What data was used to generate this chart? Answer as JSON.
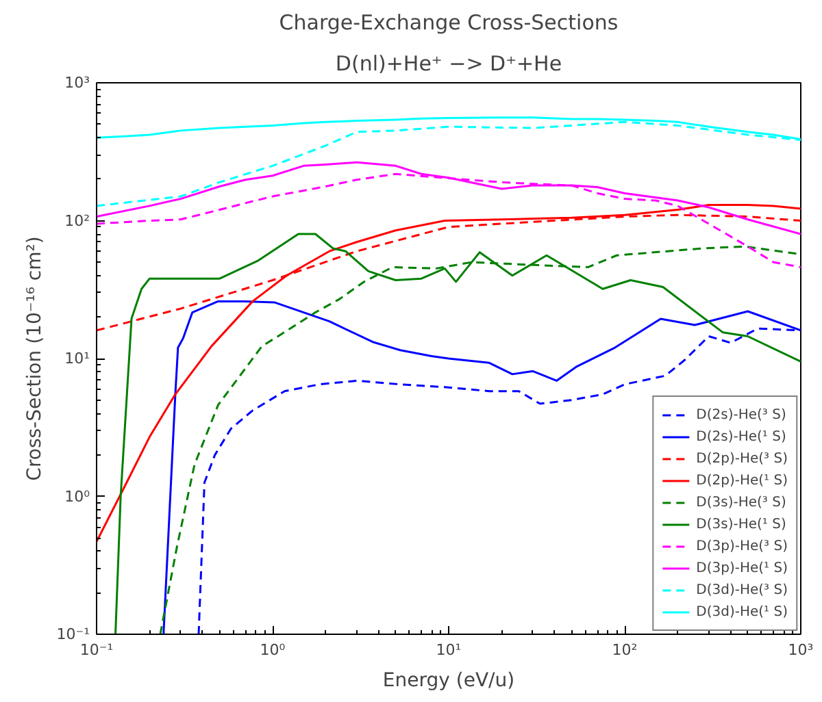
{
  "chart_data": {
    "type": "line",
    "title": "Charge-Exchange Cross-Sections",
    "subtitle": "D(nl)+He⁺ −> D⁺+He",
    "xlabel": "Energy (eV/u)",
    "ylabel": "Cross-Section (10⁻¹⁶ cm²)",
    "log": "xy",
    "xlim": [
      0.1,
      1000
    ],
    "ylim": [
      0.1,
      1000
    ],
    "xticks": [
      {
        "value": 0.1,
        "label": "10⁻¹"
      },
      {
        "value": 1,
        "label": "10⁰"
      },
      {
        "value": 10,
        "label": "10¹"
      },
      {
        "value": 100,
        "label": "10²"
      },
      {
        "value": 1000,
        "label": "10³"
      }
    ],
    "yticks": [
      {
        "value": 0.1,
        "label": "10⁻¹"
      },
      {
        "value": 1,
        "label": "10⁰"
      },
      {
        "value": 10,
        "label": "10¹"
      },
      {
        "value": 100,
        "label": "10²"
      },
      {
        "value": 1000,
        "label": "10³"
      }
    ],
    "grid": false,
    "legend": "bottom right",
    "series": [
      {
        "name": "D(2s)-He(³ S)",
        "color": "#0000ff",
        "line_style": "dashed",
        "x": [
          0.38,
          0.41,
          0.47,
          0.58,
          0.77,
          1.17,
          1.85,
          3,
          5.3,
          9.5,
          17,
          25,
          33,
          50,
          75,
          100,
          170,
          220,
          300,
          400,
          570,
          1000
        ],
        "values": [
          0.1,
          1.26,
          2,
          3.1,
          4.2,
          5.8,
          6.5,
          6.9,
          6.5,
          6.2,
          5.8,
          5.8,
          4.7,
          5.0,
          5.5,
          6.5,
          7.5,
          9.8,
          14.5,
          13,
          16.5,
          16
        ]
      },
      {
        "name": "D(2s)-He(¹ S)",
        "color": "#0000ff",
        "line_style": "solid",
        "x": [
          0.24,
          0.28,
          0.29,
          0.31,
          0.35,
          0.49,
          0.69,
          1.03,
          2.1,
          3.7,
          5.3,
          8,
          10,
          17,
          23,
          30,
          41,
          53,
          88,
          160,
          250,
          500,
          1000
        ],
        "values": [
          0.1,
          5.5,
          12,
          14,
          21.6,
          26,
          26,
          25.5,
          18.6,
          13.2,
          11.5,
          10.4,
          10,
          9.3,
          7.7,
          8.1,
          6.9,
          8.7,
          12,
          19.4,
          17.5,
          22,
          16
        ]
      },
      {
        "name": "D(2p)-He(³ S)",
        "color": "#ff0000",
        "line_style": "dashed",
        "x": [
          0.1,
          0.3,
          1,
          3,
          10,
          30,
          100,
          200,
          500,
          1000
        ],
        "values": [
          16,
          23,
          37,
          60,
          90,
          98,
          107,
          110,
          107,
          100
        ]
      },
      {
        "name": "D(2p)-He(¹ S)",
        "color": "#ff0000",
        "line_style": "solid",
        "x": [
          0.1,
          0.15,
          0.2,
          0.28,
          0.45,
          0.77,
          1.2,
          2.1,
          3,
          5,
          9.5,
          20,
          50,
          100,
          200,
          300,
          500,
          700,
          1000
        ],
        "values": [
          0.47,
          1.3,
          2.7,
          5.5,
          12.3,
          26,
          40,
          60,
          70,
          85,
          100,
          102,
          105,
          110,
          120,
          130,
          130,
          128,
          122
        ]
      },
      {
        "name": "D(3s)-He(³ S)",
        "color": "#008000",
        "line_style": "dashed",
        "x": [
          0.23,
          0.286,
          0.36,
          0.49,
          0.87,
          1.1,
          1.75,
          2.4,
          3.3,
          4.8,
          8.5,
          13.5,
          27,
          62,
          90,
          280,
          480,
          1000
        ],
        "values": [
          0.1,
          0.43,
          1.7,
          4.6,
          12.3,
          14.8,
          21.6,
          27,
          36,
          46,
          45,
          50,
          48,
          46,
          56,
          63,
          65,
          57
        ]
      },
      {
        "name": "D(3s)-He(¹ S)",
        "color": "#008000",
        "line_style": "solid",
        "x": [
          0.128,
          0.137,
          0.158,
          0.18,
          0.2,
          0.5,
          0.82,
          1.4,
          1.75,
          2.2,
          2.6,
          3.5,
          5,
          7,
          9.5,
          11,
          15,
          23,
          36,
          75,
          108,
          165,
          360,
          500,
          1000
        ],
        "values": [
          0.1,
          1,
          19.5,
          32,
          38,
          38,
          51,
          80,
          80,
          63,
          60,
          43,
          37,
          38,
          45,
          36,
          59,
          40,
          56,
          32,
          37,
          33,
          15.5,
          14.5,
          9.5
        ]
      },
      {
        "name": "D(3p)-He(³ S)",
        "color": "#ff00ff",
        "line_style": "dashed",
        "x": [
          0.1,
          0.2,
          0.3,
          0.5,
          0.7,
          1,
          2,
          3,
          5,
          10,
          20,
          30,
          50,
          70,
          100,
          150,
          200,
          300,
          500,
          700,
          1000
        ],
        "values": [
          95,
          100,
          102,
          120,
          134,
          150,
          177,
          198,
          218,
          203,
          190,
          185,
          180,
          158,
          144,
          140,
          128,
          95,
          65,
          50,
          46
        ]
      },
      {
        "name": "D(3p)-He(¹ S)",
        "color": "#ff00ff",
        "line_style": "solid",
        "x": [
          0.1,
          0.2,
          0.3,
          0.5,
          0.7,
          1,
          1.5,
          2,
          3,
          5,
          7,
          10,
          20,
          30,
          50,
          70,
          100,
          200,
          300,
          500,
          1000
        ],
        "values": [
          107,
          128,
          144,
          177,
          198,
          212,
          250,
          255,
          265,
          250,
          218,
          205,
          170,
          180,
          180,
          175,
          158,
          140,
          125,
          102,
          80
        ]
      },
      {
        "name": "D(3d)-He(³ S)",
        "color": "#00ffff",
        "line_style": "dashed",
        "x": [
          0.1,
          0.3,
          0.5,
          1,
          2,
          3,
          5,
          10,
          30,
          50,
          100,
          200,
          500,
          1000
        ],
        "values": [
          128,
          150,
          190,
          250,
          350,
          440,
          450,
          480,
          470,
          490,
          520,
          490,
          420,
          385
        ]
      },
      {
        "name": "D(3d)-He(¹ S)",
        "color": "#00ffff",
        "line_style": "solid",
        "x": [
          0.1,
          0.15,
          0.2,
          0.3,
          0.5,
          0.7,
          1,
          1.5,
          2,
          3,
          5,
          7,
          10,
          20,
          30,
          50,
          70,
          100,
          150,
          200,
          300,
          500,
          700,
          1000
        ],
        "values": [
          400,
          410,
          420,
          450,
          470,
          480,
          490,
          510,
          520,
          530,
          540,
          550,
          555,
          560,
          560,
          545,
          545,
          540,
          530,
          520,
          480,
          440,
          420,
          390
        ]
      }
    ]
  }
}
